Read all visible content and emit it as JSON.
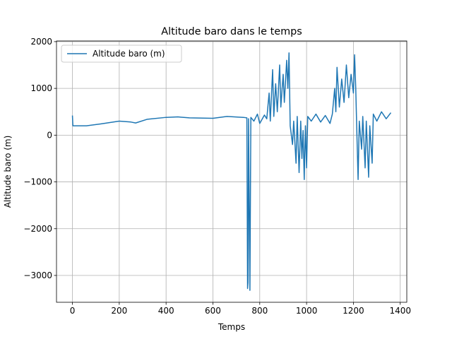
{
  "chart_data": {
    "type": "line",
    "title": "Altitude baro dans le temps",
    "x_label": "Temps",
    "y_label": "Altitude baro (m)",
    "x": [
      0,
      2,
      60,
      120,
      200,
      250,
      270,
      320,
      400,
      450,
      500,
      600,
      660,
      730,
      745,
      748,
      750,
      752,
      758,
      762,
      775,
      790,
      800,
      820,
      830,
      840,
      845,
      855,
      860,
      868,
      875,
      885,
      890,
      900,
      905,
      915,
      920,
      925,
      930,
      940,
      945,
      955,
      960,
      968,
      975,
      980,
      985,
      990,
      995,
      1000,
      1005,
      1020,
      1040,
      1060,
      1080,
      1100,
      1110,
      1120,
      1125,
      1130,
      1140,
      1150,
      1160,
      1170,
      1180,
      1190,
      1200,
      1205,
      1210,
      1215,
      1220,
      1225,
      1235,
      1240,
      1250,
      1255,
      1265,
      1270,
      1280,
      1285,
      1300,
      1320,
      1340,
      1360
    ],
    "series": [
      {
        "name": "Altitude baro (m)",
        "color": "#1f77b4",
        "values": [
          420,
          200,
          200,
          240,
          300,
          280,
          260,
          340,
          380,
          390,
          370,
          360,
          400,
          380,
          370,
          -3280,
          -3150,
          350,
          -3320,
          380,
          300,
          450,
          250,
          430,
          350,
          900,
          300,
          1400,
          400,
          1100,
          500,
          1500,
          600,
          1300,
          700,
          1600,
          1000,
          1760,
          200,
          -200,
          300,
          -600,
          400,
          -800,
          300,
          -500,
          100,
          -950,
          200,
          -700,
          400,
          300,
          450,
          280,
          420,
          250,
          450,
          1000,
          500,
          1450,
          600,
          1200,
          700,
          1500,
          800,
          1300,
          900,
          1720,
          1000,
          0,
          -950,
          300,
          -300,
          400,
          -700,
          300,
          -900,
          200,
          -600,
          450,
          300,
          500,
          350,
          480
        ]
      }
    ],
    "xlim": [
      -68,
      1428
    ],
    "ylim": [
      -3574,
      2014
    ],
    "xticks": [
      0,
      200,
      400,
      600,
      800,
      1000,
      1200,
      1400
    ],
    "yticks": [
      {
        "value": -3000,
        "label": "−3000"
      },
      {
        "value": -2000,
        "label": "−2000"
      },
      {
        "value": -1000,
        "label": "−1000"
      },
      0,
      1000,
      2000
    ],
    "grid": true,
    "legend": "upper left"
  }
}
